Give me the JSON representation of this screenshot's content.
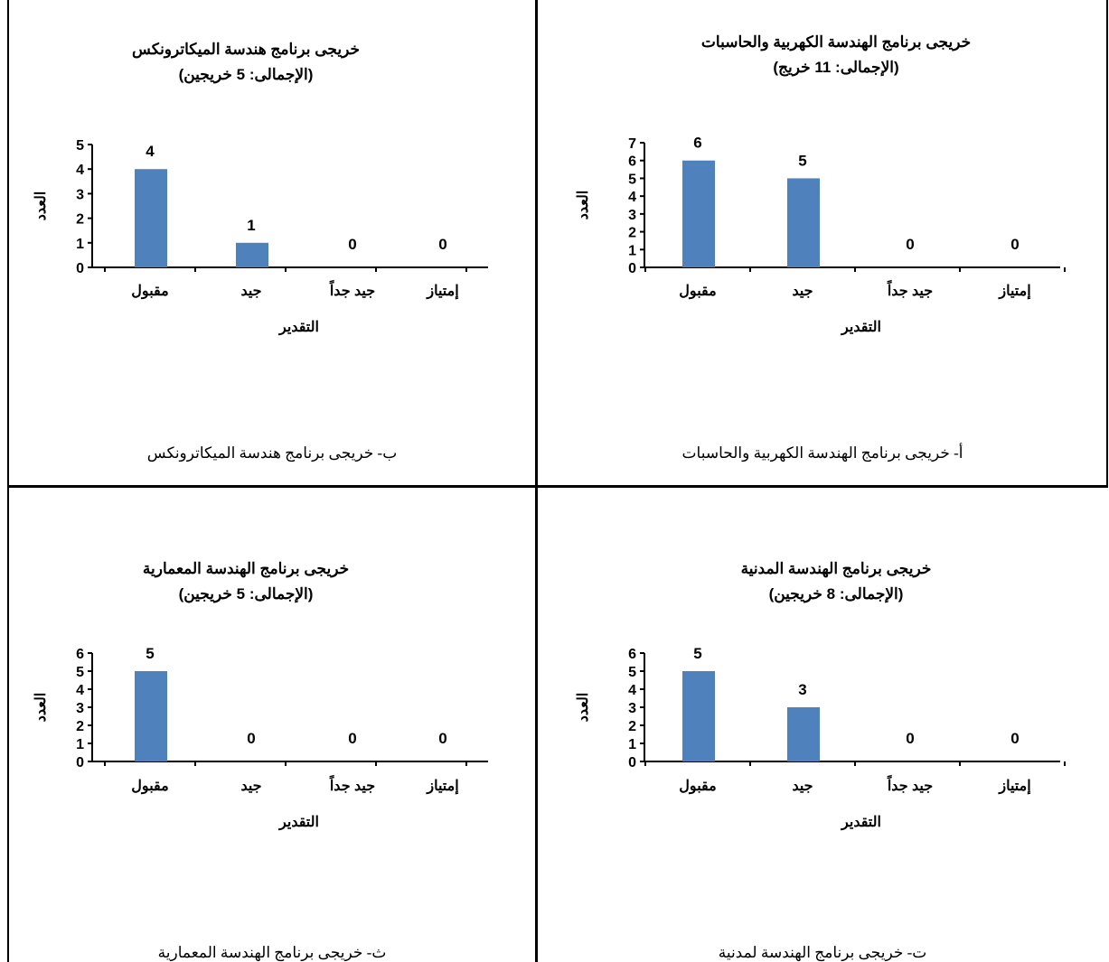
{
  "layout_colors": {
    "bar": "#4f81bd",
    "axis": "#000000"
  },
  "chart_data": [
    {
      "id": "ee",
      "type": "bar",
      "title_line1": "خريجى برنامج الهندسة الكهربية والحاسبات",
      "title_line2": "(الإجمالى: 11 خريج)",
      "xlabel": "التقدير",
      "ylabel": "العدد",
      "categories": [
        "إمتياز",
        "جيد جداً",
        "جيد",
        "مقبول"
      ],
      "values": [
        0,
        0,
        5,
        6
      ],
      "ylim": [
        0,
        7
      ],
      "yticks": [
        "0",
        "1",
        "2",
        "3",
        "4",
        "5",
        "6",
        "7"
      ],
      "caption": "أ- خريجى برنامج الهندسة الكهربية والحاسبات"
    },
    {
      "id": "mech",
      "type": "bar",
      "title_line1": "خريجى برنامج هندسة الميكاترونكس",
      "title_line2": "(الإجمالى: 5 خريجين)",
      "xlabel": "التقدير",
      "ylabel": "العدد",
      "categories": [
        "إمتياز",
        "جيد جداً",
        "جيد",
        "مقبول"
      ],
      "values": [
        0,
        0,
        1,
        4
      ],
      "ylim": [
        0,
        5
      ],
      "yticks": [
        "0",
        "1",
        "2",
        "3",
        "4",
        "5"
      ],
      "caption": "ب- خريجى برنامج هندسة الميكاترونكس"
    },
    {
      "id": "civil",
      "type": "bar",
      "title_line1": "خريجى برنامج الهندسة المدنية",
      "title_line2": "(الإجمالى: 8 خريجين)",
      "xlabel": "التقدير",
      "ylabel": "العدد",
      "categories": [
        "إمتياز",
        "جيد جداً",
        "جيد",
        "مقبول"
      ],
      "values": [
        0,
        0,
        3,
        5
      ],
      "ylim": [
        0,
        6
      ],
      "yticks": [
        "0",
        "1",
        "2",
        "3",
        "4",
        "5",
        "6"
      ],
      "caption": "ت- خريجى برنامج الهندسة لمدنية"
    },
    {
      "id": "arch",
      "type": "bar",
      "title_line1": "خريجى برنامج الهندسة المعمارية",
      "title_line2": "(الإجمالى: 5 خريجين)",
      "xlabel": "التقدير",
      "ylabel": "العدد",
      "categories": [
        "إمتياز",
        "جيد جداً",
        "جيد",
        "مقبول"
      ],
      "values": [
        0,
        0,
        0,
        5
      ],
      "ylim": [
        0,
        6
      ],
      "yticks": [
        "0",
        "1",
        "2",
        "3",
        "4",
        "5",
        "6"
      ],
      "caption": "ث- خريجى برنامج الهندسة المعمارية"
    }
  ]
}
